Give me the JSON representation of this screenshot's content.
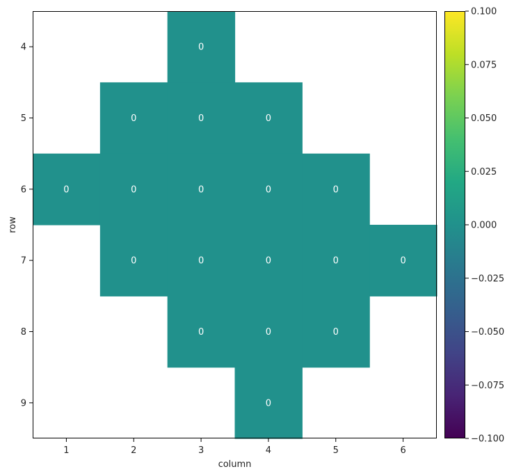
{
  "chart_data": {
    "type": "heatmap",
    "title": "",
    "xlabel": "column",
    "ylabel": "row",
    "x_ticks": [
      "1",
      "2",
      "3",
      "4",
      "5",
      "6"
    ],
    "y_ticks": [
      "4",
      "5",
      "6",
      "7",
      "8",
      "9"
    ],
    "xlim": [
      0.5,
      6.5
    ],
    "ylim": [
      3.5,
      9.5
    ],
    "colormap": "viridis",
    "cell_color": "#21918c",
    "cells": [
      {
        "row": 4,
        "column": 3,
        "value": 0,
        "label": "0"
      },
      {
        "row": 5,
        "column": 2,
        "value": 0,
        "label": "0"
      },
      {
        "row": 5,
        "column": 3,
        "value": 0,
        "label": "0"
      },
      {
        "row": 5,
        "column": 4,
        "value": 0,
        "label": "0"
      },
      {
        "row": 6,
        "column": 1,
        "value": 0,
        "label": "0"
      },
      {
        "row": 6,
        "column": 2,
        "value": 0,
        "label": "0"
      },
      {
        "row": 6,
        "column": 3,
        "value": 0,
        "label": "0"
      },
      {
        "row": 6,
        "column": 4,
        "value": 0,
        "label": "0"
      },
      {
        "row": 6,
        "column": 5,
        "value": 0,
        "label": "0"
      },
      {
        "row": 7,
        "column": 2,
        "value": 0,
        "label": "0"
      },
      {
        "row": 7,
        "column": 3,
        "value": 0,
        "label": "0"
      },
      {
        "row": 7,
        "column": 4,
        "value": 0,
        "label": "0"
      },
      {
        "row": 7,
        "column": 5,
        "value": 0,
        "label": "0"
      },
      {
        "row": 7,
        "column": 6,
        "value": 0,
        "label": "0"
      },
      {
        "row": 8,
        "column": 3,
        "value": 0,
        "label": "0"
      },
      {
        "row": 8,
        "column": 4,
        "value": 0,
        "label": "0"
      },
      {
        "row": 8,
        "column": 5,
        "value": 0,
        "label": "0"
      },
      {
        "row": 9,
        "column": 4,
        "value": 0,
        "label": "0"
      }
    ],
    "colorbar": {
      "range": [
        -0.1,
        0.1
      ],
      "ticks": [
        {
          "value": 0.1,
          "label": "0.100"
        },
        {
          "value": 0.075,
          "label": "0.075"
        },
        {
          "value": 0.05,
          "label": "0.050"
        },
        {
          "value": 0.025,
          "label": "0.025"
        },
        {
          "value": 0.0,
          "label": "0.000"
        },
        {
          "value": -0.025,
          "label": "−0.025"
        },
        {
          "value": -0.05,
          "label": "−0.050"
        },
        {
          "value": -0.075,
          "label": "−0.075"
        },
        {
          "value": -0.1,
          "label": "−0.100"
        }
      ]
    },
    "grid": false,
    "legend": "none"
  }
}
